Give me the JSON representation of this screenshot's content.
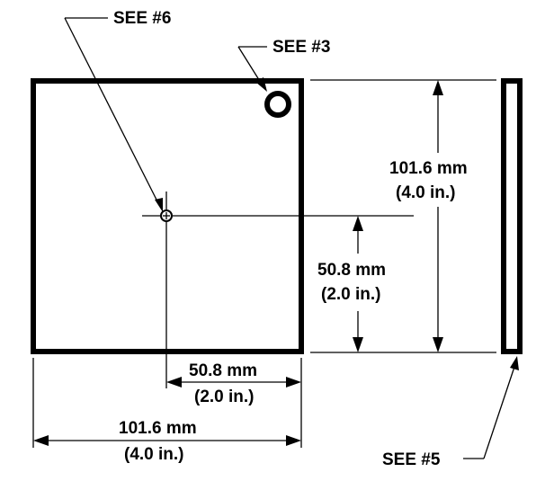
{
  "callouts": {
    "see6": "SEE #6",
    "see3": "SEE #3",
    "see5": "SEE #5"
  },
  "dimensions": {
    "height_total": {
      "metric": "101.6 mm",
      "imperial": "(4.0 in.)"
    },
    "height_half": {
      "metric": "50.8 mm",
      "imperial": "(2.0 in.)"
    },
    "width_half": {
      "metric": "50.8 mm",
      "imperial": "(2.0 in.)"
    },
    "width_total": {
      "metric": "101.6 mm",
      "imperial": "(4.0 in.)"
    }
  },
  "colors": {
    "line": "#000000",
    "background": "#ffffff"
  }
}
